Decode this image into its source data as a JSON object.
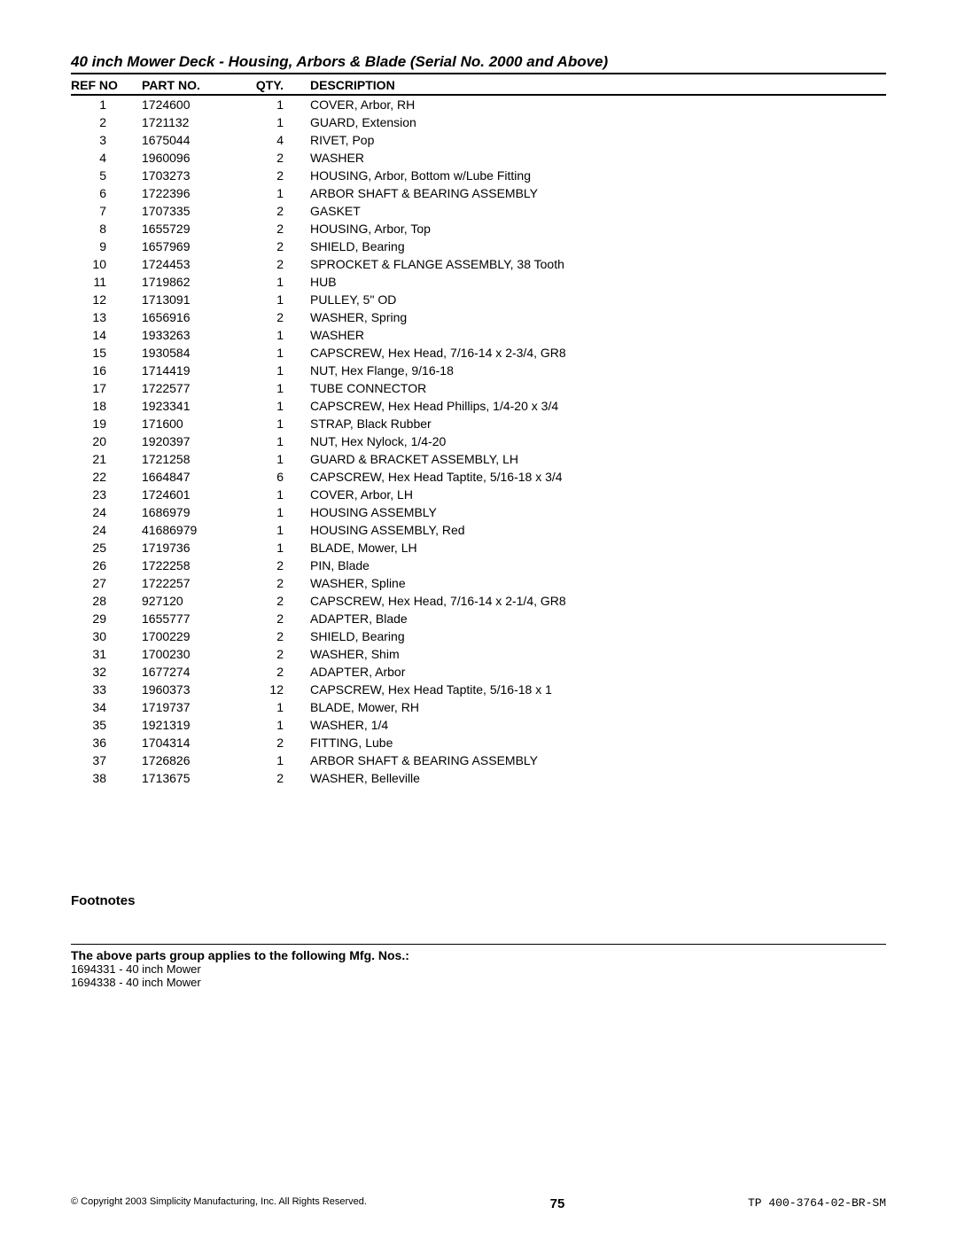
{
  "title": "40 inch Mower Deck - Housing, Arbors & Blade (Serial No. 2000 and Above)",
  "headers": {
    "ref": "REF NO",
    "part": "PART NO.",
    "qty": "QTY.",
    "desc": "DESCRIPTION"
  },
  "rows": [
    {
      "ref": "1",
      "part": "1724600",
      "qty": "1",
      "desc": "COVER, Arbor, RH"
    },
    {
      "ref": "2",
      "part": "1721132",
      "qty": "1",
      "desc": "GUARD, Extension"
    },
    {
      "ref": "3",
      "part": "1675044",
      "qty": "4",
      "desc": "RIVET, Pop"
    },
    {
      "ref": "4",
      "part": "1960096",
      "qty": "2",
      "desc": "WASHER"
    },
    {
      "ref": "5",
      "part": "1703273",
      "qty": "2",
      "desc": "HOUSING, Arbor, Bottom w/Lube Fitting"
    },
    {
      "ref": "6",
      "part": "1722396",
      "qty": "1",
      "desc": "ARBOR SHAFT & BEARING ASSEMBLY"
    },
    {
      "ref": "7",
      "part": "1707335",
      "qty": "2",
      "desc": "GASKET"
    },
    {
      "ref": "8",
      "part": "1655729",
      "qty": "2",
      "desc": "HOUSING, Arbor, Top"
    },
    {
      "ref": "9",
      "part": "1657969",
      "qty": "2",
      "desc": "SHIELD, Bearing"
    },
    {
      "ref": "10",
      "part": "1724453",
      "qty": "2",
      "desc": "SPROCKET & FLANGE ASSEMBLY, 38 Tooth"
    },
    {
      "ref": "11",
      "part": "1719862",
      "qty": "1",
      "desc": "HUB"
    },
    {
      "ref": "12",
      "part": "1713091",
      "qty": "1",
      "desc": "PULLEY, 5\" OD"
    },
    {
      "ref": "13",
      "part": "1656916",
      "qty": "2",
      "desc": "WASHER, Spring"
    },
    {
      "ref": "14",
      "part": "1933263",
      "qty": "1",
      "desc": "WASHER"
    },
    {
      "ref": "15",
      "part": "1930584",
      "qty": "1",
      "desc": "CAPSCREW, Hex Head, 7/16-14 x 2-3/4, GR8"
    },
    {
      "ref": "16",
      "part": "1714419",
      "qty": "1",
      "desc": "NUT, Hex Flange, 9/16-18"
    },
    {
      "ref": "17",
      "part": "1722577",
      "qty": "1",
      "desc": "TUBE CONNECTOR"
    },
    {
      "ref": "18",
      "part": "1923341",
      "qty": "1",
      "desc": "CAPSCREW, Hex Head Phillips, 1/4-20 x 3/4"
    },
    {
      "ref": "19",
      "part": "171600",
      "qty": "1",
      "desc": "STRAP, Black Rubber"
    },
    {
      "ref": "20",
      "part": "1920397",
      "qty": "1",
      "desc": "NUT, Hex Nylock, 1/4-20"
    },
    {
      "ref": "21",
      "part": "1721258",
      "qty": "1",
      "desc": "GUARD & BRACKET ASSEMBLY, LH"
    },
    {
      "ref": "22",
      "part": "1664847",
      "qty": "6",
      "desc": "CAPSCREW, Hex Head Taptite, 5/16-18 x 3/4"
    },
    {
      "ref": "23",
      "part": "1724601",
      "qty": "1",
      "desc": "COVER, Arbor, LH"
    },
    {
      "ref": "24",
      "part": "1686979",
      "qty": "1",
      "desc": "HOUSING ASSEMBLY"
    },
    {
      "ref": "24",
      "part": "41686979",
      "qty": "1",
      "desc": "HOUSING ASSEMBLY, Red"
    },
    {
      "ref": "25",
      "part": "1719736",
      "qty": "1",
      "desc": "BLADE, Mower, LH"
    },
    {
      "ref": "26",
      "part": "1722258",
      "qty": "2",
      "desc": "PIN, Blade"
    },
    {
      "ref": "27",
      "part": "1722257",
      "qty": "2",
      "desc": "WASHER, Spline"
    },
    {
      "ref": "28",
      "part": "927120",
      "qty": "2",
      "desc": "CAPSCREW, Hex Head, 7/16-14 x 2-1/4, GR8"
    },
    {
      "ref": "29",
      "part": "1655777",
      "qty": "2",
      "desc": "ADAPTER, Blade"
    },
    {
      "ref": "30",
      "part": "1700229",
      "qty": "2",
      "desc": "SHIELD, Bearing"
    },
    {
      "ref": "31",
      "part": "1700230",
      "qty": "2",
      "desc": "WASHER, Shim"
    },
    {
      "ref": "32",
      "part": "1677274",
      "qty": "2",
      "desc": "ADAPTER, Arbor"
    },
    {
      "ref": "33",
      "part": "1960373",
      "qty": "12",
      "desc": "CAPSCREW, Hex Head Taptite, 5/16-18 x 1"
    },
    {
      "ref": "34",
      "part": "1719737",
      "qty": "1",
      "desc": "BLADE, Mower, RH"
    },
    {
      "ref": "35",
      "part": "1921319",
      "qty": "1",
      "desc": "WASHER, 1/4"
    },
    {
      "ref": "36",
      "part": "1704314",
      "qty": "2",
      "desc": "FITTING, Lube"
    },
    {
      "ref": "37",
      "part": "1726826",
      "qty": "1",
      "desc": "ARBOR SHAFT & BEARING ASSEMBLY"
    },
    {
      "ref": "38",
      "part": "1713675",
      "qty": "2",
      "desc": "WASHER, Belleville"
    }
  ],
  "footnotes_heading": "Footnotes",
  "applies_heading": "The above parts group applies to the following Mfg. Nos.:",
  "mfg_nos": [
    "1694331 - 40 inch Mower",
    "1694338 - 40 inch Mower"
  ],
  "footer": {
    "copyright": "© Copyright 2003 Simplicity Manufacturing, Inc. All Rights Reserved.",
    "page_number": "75",
    "doc_id": "TP 400-3764-02-BR-SM"
  }
}
